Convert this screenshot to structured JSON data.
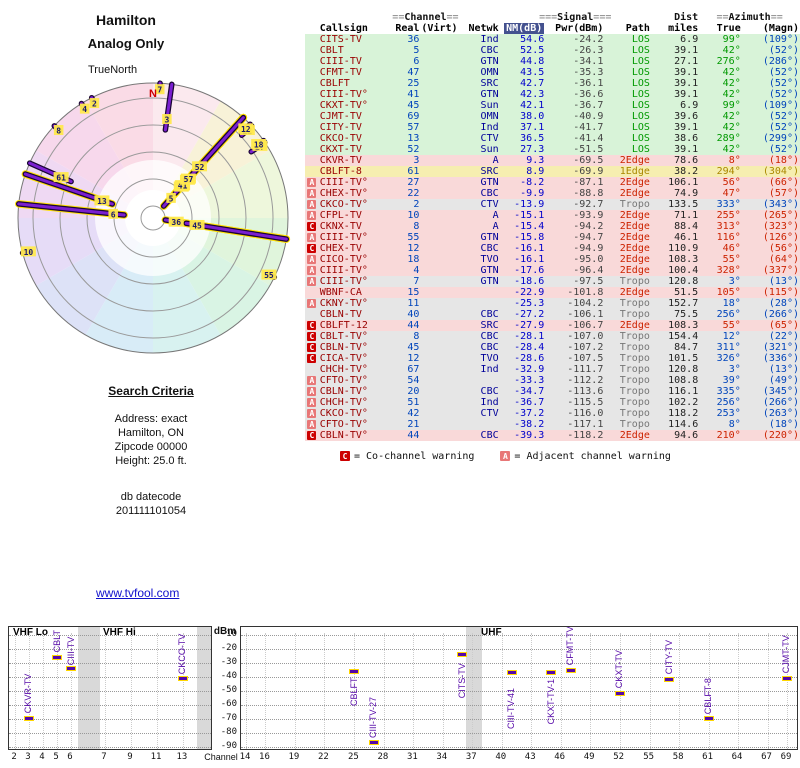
{
  "radar_meta": {
    "title": "Hamilton",
    "subtitle": "Analog Only",
    "north_label": "TrueNorth",
    "n_marker": "N"
  },
  "link": {
    "text": "www.tvfool.com"
  },
  "search": {
    "heading": "Search Criteria",
    "lines": [
      "Address: exact",
      "Hamilton, ON",
      "Zipcode 00000",
      "Height: 25.0 ft."
    ],
    "db_label": "db datecode",
    "db_value": "201111101054"
  },
  "legend": {
    "c_label": "C",
    "c_text": "= Co-channel warning",
    "a_label": "A",
    "a_text": "= Adjacent channel warning"
  },
  "table": {
    "top_headers": [
      {
        "pre": "==",
        "label": "Channel",
        "post": "=="
      },
      {
        "pre": "===",
        "label": "Signal",
        "post": "==="
      },
      {
        "pre": "",
        "label": "Dist",
        "post": ""
      },
      {
        "pre": "==",
        "label": "Azimuth",
        "post": "=="
      }
    ],
    "col_headers": [
      "Callsign",
      "Real",
      "(Virt)",
      "Netwk",
      "NM(dB)",
      "Pwr(dBm)",
      "Path",
      "miles",
      "True",
      "(Magn)"
    ],
    "rows": [
      {
        "w": "",
        "cs": "CITS-TV",
        "ch": "36",
        "net": "Ind",
        "nm": "54.6",
        "pwr": "-24.2",
        "path": "LOS",
        "mi": "6.9",
        "az": "99°",
        "mag": "(109°)"
      },
      {
        "w": "",
        "cs": "CBLT",
        "ch": "5",
        "net": "CBC",
        "nm": "52.5",
        "pwr": "-26.3",
        "path": "LOS",
        "mi": "39.1",
        "az": "42°",
        "mag": "(52°)"
      },
      {
        "w": "",
        "cs": "CIII-TV",
        "ch": "6",
        "net": "GTN",
        "nm": "44.8",
        "pwr": "-34.1",
        "path": "LOS",
        "mi": "27.1",
        "az": "276°",
        "mag": "(286°)"
      },
      {
        "w": "",
        "cs": "CFMT-TV",
        "ch": "47",
        "net": "OMN",
        "nm": "43.5",
        "pwr": "-35.3",
        "path": "LOS",
        "mi": "39.1",
        "az": "42°",
        "mag": "(52°)"
      },
      {
        "w": "",
        "cs": "CBLFT",
        "ch": "25",
        "net": "SRC",
        "nm": "42.7",
        "pwr": "-36.1",
        "path": "LOS",
        "mi": "39.1",
        "az": "42°",
        "mag": "(52°)"
      },
      {
        "w": "",
        "cs": "CIII-TV°",
        "ch": "41",
        "net": "GTN",
        "nm": "42.3",
        "pwr": "-36.6",
        "path": "LOS",
        "mi": "39.1",
        "az": "42°",
        "mag": "(52°)"
      },
      {
        "w": "",
        "cs": "CKXT-TV°",
        "ch": "45",
        "net": "Sun",
        "nm": "42.1",
        "pwr": "-36.7",
        "path": "LOS",
        "mi": "6.9",
        "az": "99°",
        "mag": "(109°)"
      },
      {
        "w": "",
        "cs": "CJMT-TV",
        "ch": "69",
        "net": "OMN",
        "nm": "38.0",
        "pwr": "-40.9",
        "path": "LOS",
        "mi": "39.6",
        "az": "42°",
        "mag": "(52°)"
      },
      {
        "w": "",
        "cs": "CITY-TV",
        "ch": "57",
        "net": "Ind",
        "nm": "37.1",
        "pwr": "-41.7",
        "path": "LOS",
        "mi": "39.1",
        "az": "42°",
        "mag": "(52°)"
      },
      {
        "w": "",
        "cs": "CKCO-TV",
        "ch": "13",
        "net": "CTV",
        "nm": "36.5",
        "pwr": "-41.4",
        "path": "LOS",
        "mi": "38.6",
        "az": "289°",
        "mag": "(299°)"
      },
      {
        "w": "",
        "cs": "CKXT-TV",
        "ch": "52",
        "net": "Sun",
        "nm": "27.3",
        "pwr": "-51.5",
        "path": "LOS",
        "mi": "39.1",
        "az": "42°",
        "mag": "(52°)"
      },
      {
        "w": "",
        "cs": "CKVR-TV",
        "ch": "3",
        "net": "A",
        "nm": "9.3",
        "pwr": "-69.5",
        "path": "2Edge",
        "mi": "78.6",
        "az": "8°",
        "mag": "(18°)"
      },
      {
        "w": "",
        "cs": "CBLFT-8",
        "ch": "61",
        "net": "SRC",
        "nm": "8.9",
        "pwr": "-69.9",
        "path": "1Edge",
        "mi": "38.2",
        "az": "294°",
        "mag": "(304°)"
      },
      {
        "w": "A",
        "cs": "CIII-TV°",
        "ch": "27",
        "net": "GTN",
        "nm": "-8.2",
        "pwr": "-87.1",
        "path": "2Edge",
        "mi": "106.1",
        "az": "56°",
        "mag": "(66°)"
      },
      {
        "w": "A",
        "cs": "CHEX-TV°",
        "ch": "22",
        "net": "CBC",
        "nm": "-9.9",
        "pwr": "-88.8",
        "path": "2Edge",
        "mi": "74.9",
        "az": "47°",
        "mag": "(57°)"
      },
      {
        "w": "A",
        "cs": "CKCO-TV°",
        "ch": "2",
        "net": "CTV",
        "nm": "-13.9",
        "pwr": "-92.7",
        "path": "Tropo",
        "mi": "133.5",
        "az": "333°",
        "mag": "(343°)"
      },
      {
        "w": "A",
        "cs": "CFPL-TV",
        "ch": "10",
        "net": "A",
        "nm": "-15.1",
        "pwr": "-93.9",
        "path": "2Edge",
        "mi": "71.1",
        "az": "255°",
        "mag": "(265°)"
      },
      {
        "w": "C",
        "cs": "CKNX-TV",
        "ch": "8",
        "net": "A",
        "nm": "-15.4",
        "pwr": "-94.2",
        "path": "2Edge",
        "mi": "88.4",
        "az": "313°",
        "mag": "(323°)"
      },
      {
        "w": "A",
        "cs": "CIII-TV°",
        "ch": "55",
        "net": "GTN",
        "nm": "-15.8",
        "pwr": "-94.7",
        "path": "2Edge",
        "mi": "46.1",
        "az": "116°",
        "mag": "(126°)"
      },
      {
        "w": "C",
        "cs": "CHEX-TV",
        "ch": "12",
        "net": "CBC",
        "nm": "-16.1",
        "pwr": "-94.9",
        "path": "2Edge",
        "mi": "110.9",
        "az": "46°",
        "mag": "(56°)"
      },
      {
        "w": "A",
        "cs": "CICO-TV°",
        "ch": "18",
        "net": "TVO",
        "nm": "-16.1",
        "pwr": "-95.0",
        "path": "2Edge",
        "mi": "108.3",
        "az": "55°",
        "mag": "(64°)"
      },
      {
        "w": "A",
        "cs": "CIII-TV°",
        "ch": "4",
        "net": "GTN",
        "nm": "-17.6",
        "pwr": "-96.4",
        "path": "2Edge",
        "mi": "100.4",
        "az": "328°",
        "mag": "(337°)"
      },
      {
        "w": "A",
        "cs": "CIII-TV°",
        "ch": "7",
        "net": "GTN",
        "nm": "-18.6",
        "pwr": "-97.5",
        "path": "Tropo",
        "mi": "120.8",
        "az": "3°",
        "mag": "(13°)"
      },
      {
        "w": "",
        "cs": "WBNF-CA",
        "ch": "15",
        "net": "",
        "nm": "-22.9",
        "pwr": "-101.8",
        "path": "2Edge",
        "mi": "51.5",
        "az": "105°",
        "mag": "(115°)"
      },
      {
        "w": "A",
        "cs": "CKNY-TV°",
        "ch": "11",
        "net": "",
        "nm": "-25.3",
        "pwr": "-104.2",
        "path": "Tropo",
        "mi": "152.7",
        "az": "18°",
        "mag": "(28°)"
      },
      {
        "w": "",
        "cs": "CBLN-TV",
        "ch": "40",
        "net": "CBC",
        "nm": "-27.2",
        "pwr": "-106.1",
        "path": "Tropo",
        "mi": "75.5",
        "az": "256°",
        "mag": "(266°)"
      },
      {
        "w": "C",
        "cs": "CBLFT-12",
        "ch": "44",
        "net": "SRC",
        "nm": "-27.9",
        "pwr": "-106.7",
        "path": "2Edge",
        "mi": "108.3",
        "az": "55°",
        "mag": "(65°)"
      },
      {
        "w": "C",
        "cs": "CBLT-TV°",
        "ch": "8",
        "net": "CBC",
        "nm": "-28.1",
        "pwr": "-107.0",
        "path": "Tropo",
        "mi": "154.4",
        "az": "12°",
        "mag": "(22°)"
      },
      {
        "w": "C",
        "cs": "CBLN-TV°",
        "ch": "45",
        "net": "CBC",
        "nm": "-28.4",
        "pwr": "-107.2",
        "path": "Tropo",
        "mi": "84.7",
        "az": "311°",
        "mag": "(321°)"
      },
      {
        "w": "C",
        "cs": "CICA-TV°",
        "ch": "12",
        "net": "TVO",
        "nm": "-28.6",
        "pwr": "-107.5",
        "path": "Tropo",
        "mi": "101.5",
        "az": "326°",
        "mag": "(336°)"
      },
      {
        "w": "",
        "cs": "CHCH-TV°",
        "ch": "67",
        "net": "Ind",
        "nm": "-32.9",
        "pwr": "-111.7",
        "path": "Tropo",
        "mi": "120.8",
        "az": "3°",
        "mag": "(13°)"
      },
      {
        "w": "A",
        "cs": "CFTO-TV°",
        "ch": "54",
        "net": "",
        "nm": "-33.3",
        "pwr": "-112.2",
        "path": "Tropo",
        "mi": "108.8",
        "az": "39°",
        "mag": "(49°)"
      },
      {
        "w": "A",
        "cs": "CBLN-TV°",
        "ch": "20",
        "net": "CBC",
        "nm": "-34.7",
        "pwr": "-113.6",
        "path": "Tropo",
        "mi": "116.1",
        "az": "335°",
        "mag": "(345°)"
      },
      {
        "w": "A",
        "cs": "CHCH-TV°",
        "ch": "51",
        "net": "Ind",
        "nm": "-36.7",
        "pwr": "-115.5",
        "path": "Tropo",
        "mi": "102.2",
        "az": "256°",
        "mag": "(266°)"
      },
      {
        "w": "A",
        "cs": "CKCO-TV°",
        "ch": "42",
        "net": "CTV",
        "nm": "-37.2",
        "pwr": "-116.0",
        "path": "Tropo",
        "mi": "118.2",
        "az": "253°",
        "mag": "(263°)"
      },
      {
        "w": "A",
        "cs": "CFTO-TV°",
        "ch": "21",
        "net": "",
        "nm": "-38.2",
        "pwr": "-117.1",
        "path": "Tropo",
        "mi": "114.6",
        "az": "8°",
        "mag": "(18°)"
      },
      {
        "w": "C",
        "cs": "CBLN-TV°",
        "ch": "44",
        "net": "CBC",
        "nm": "-39.3",
        "pwr": "-118.2",
        "path": "2Edge",
        "mi": "94.6",
        "az": "210°",
        "mag": "(220°)"
      }
    ]
  },
  "chart_data": [
    {
      "type": "radar-polar",
      "title": "Hamilton",
      "subtitle": "Analog Only",
      "note": "spokes drawn from outer edge inward; stronger NM(dB) reaches closer to center; azimuth_deg measured clockwise from true north",
      "wedge_colors": [
        "#fbe9ee",
        "#f8f2d8",
        "#eef7dc",
        "#e0f5dc",
        "#d9f4e4",
        "#d8f2f0",
        "#d8ecf7",
        "#dde2f7",
        "#e6dcf7",
        "#efd9f3",
        "#f7d8ec",
        "#fadbe6"
      ],
      "spokes": [
        {
          "label": "36",
          "azimuth_deg": 99,
          "nm_db": 54.6
        },
        {
          "label": "5",
          "azimuth_deg": 42,
          "nm_db": 52.5
        },
        {
          "label": "6",
          "azimuth_deg": 276,
          "nm_db": 44.8
        },
        {
          "label": "47",
          "azimuth_deg": 42,
          "nm_db": 43.5
        },
        {
          "label": "25",
          "azimuth_deg": 42,
          "nm_db": 42.7
        },
        {
          "label": "41",
          "azimuth_deg": 42,
          "nm_db": 42.3
        },
        {
          "label": "45",
          "azimuth_deg": 99,
          "nm_db": 42.1
        },
        {
          "label": "69",
          "azimuth_deg": 42,
          "nm_db": 38.0
        },
        {
          "label": "57",
          "azimuth_deg": 42,
          "nm_db": 37.1
        },
        {
          "label": "13",
          "azimuth_deg": 289,
          "nm_db": 36.5
        },
        {
          "label": "52",
          "azimuth_deg": 42,
          "nm_db": 27.3
        },
        {
          "label": "3",
          "azimuth_deg": 8,
          "nm_db": 9.3
        },
        {
          "label": "61",
          "azimuth_deg": 294,
          "nm_db": 8.9
        },
        {
          "label": "27",
          "azimuth_deg": 56,
          "nm_db": -8.2
        },
        {
          "label": "22",
          "azimuth_deg": 47,
          "nm_db": -9.9
        },
        {
          "label": "2",
          "azimuth_deg": 333,
          "nm_db": -13.9
        },
        {
          "label": "10",
          "azimuth_deg": 255,
          "nm_db": -15.1
        },
        {
          "label": "8",
          "azimuth_deg": 313,
          "nm_db": -15.4
        },
        {
          "label": "55",
          "azimuth_deg": 116,
          "nm_db": -15.8
        },
        {
          "label": "12",
          "azimuth_deg": 46,
          "nm_db": -16.1
        },
        {
          "label": "18",
          "azimuth_deg": 55,
          "nm_db": -16.1
        },
        {
          "label": "4",
          "azimuth_deg": 328,
          "nm_db": -17.6
        },
        {
          "label": "7",
          "azimuth_deg": 3,
          "nm_db": -18.6
        }
      ]
    },
    {
      "type": "scatter",
      "ylabel": "dBm",
      "xlabel": "Channel",
      "ylim": [
        -90,
        -10
      ],
      "y_ticks": [
        -10,
        -20,
        -30,
        -40,
        -50,
        -60,
        -70,
        -80,
        -90
      ],
      "left_panel": {
        "band_labels": [
          {
            "text": "VHF Lo",
            "x": 4
          },
          {
            "text": "VHF Hi",
            "x": 94
          }
        ],
        "ticks": [
          {
            "label": "2",
            "f": 0.03
          },
          {
            "label": "3",
            "f": 0.099
          },
          {
            "label": "4",
            "f": 0.168
          },
          {
            "label": "5",
            "f": 0.238
          },
          {
            "label": "6",
            "f": 0.307
          },
          {
            "label": "7",
            "f": 0.475
          },
          {
            "label": "9",
            "f": 0.604
          },
          {
            "label": "11",
            "f": 0.733
          },
          {
            "label": "13",
            "f": 0.861
          }
        ],
        "gray_bands": [
          [
            0.34,
            0.45
          ],
          [
            0.93,
            1.0
          ]
        ],
        "stations": [
          {
            "label": "CKVR-TV",
            "f": 0.099,
            "pwr": -69.5
          },
          {
            "label": "CBLT",
            "f": 0.238,
            "pwr": -26.3
          },
          {
            "label": "CIII-TV",
            "f": 0.307,
            "pwr": -34.1
          },
          {
            "label": "CKCO-TV",
            "f": 0.861,
            "pwr": -41.4
          }
        ]
      },
      "right_panel": {
        "band_labels": [
          {
            "text": "UHF",
            "x": 240
          }
        ],
        "ticks": [
          {
            "label": "14",
            "f": 0.009
          },
          {
            "label": "16",
            "f": 0.044
          },
          {
            "label": "19",
            "f": 0.097
          },
          {
            "label": "22",
            "f": 0.15
          },
          {
            "label": "25",
            "f": 0.204
          },
          {
            "label": "28",
            "f": 0.257
          },
          {
            "label": "31",
            "f": 0.31
          },
          {
            "label": "34",
            "f": 0.363
          },
          {
            "label": "37",
            "f": 0.416
          },
          {
            "label": "40",
            "f": 0.469
          },
          {
            "label": "43",
            "f": 0.522
          },
          {
            "label": "46",
            "f": 0.575
          },
          {
            "label": "49",
            "f": 0.628
          },
          {
            "label": "52",
            "f": 0.681
          },
          {
            "label": "55",
            "f": 0.735
          },
          {
            "label": "58",
            "f": 0.788
          },
          {
            "label": "61",
            "f": 0.841
          },
          {
            "label": "64",
            "f": 0.894
          },
          {
            "label": "67",
            "f": 0.947
          },
          {
            "label": "69",
            "f": 0.982
          }
        ],
        "gray_bands": [
          [
            0.405,
            0.434
          ]
        ],
        "stations": [
          {
            "label": "CBLFT",
            "f": 0.204,
            "pwr": -36.1,
            "side": "below"
          },
          {
            "label": "CIII-TV-27",
            "f": 0.239,
            "pwr": -87.1
          },
          {
            "label": "CITS-TV",
            "f": 0.398,
            "pwr": -24.2
          },
          {
            "label": "CIII-TV-41",
            "f": 0.487,
            "pwr": -36.6
          },
          {
            "label": "CKXT-TV-1",
            "f": 0.558,
            "pwr": -36.7
          },
          {
            "label": "CFMT-TV",
            "f": 0.593,
            "pwr": -35.3
          },
          {
            "label": "CKXT-TV",
            "f": 0.681,
            "pwr": -51.5
          },
          {
            "label": "CITY-TV",
            "f": 0.77,
            "pwr": -41.7
          },
          {
            "label": "CBLFT-8",
            "f": 0.841,
            "pwr": -69.9
          },
          {
            "label": "CJMT-TV",
            "f": 0.982,
            "pwr": -40.9
          }
        ]
      }
    }
  ]
}
